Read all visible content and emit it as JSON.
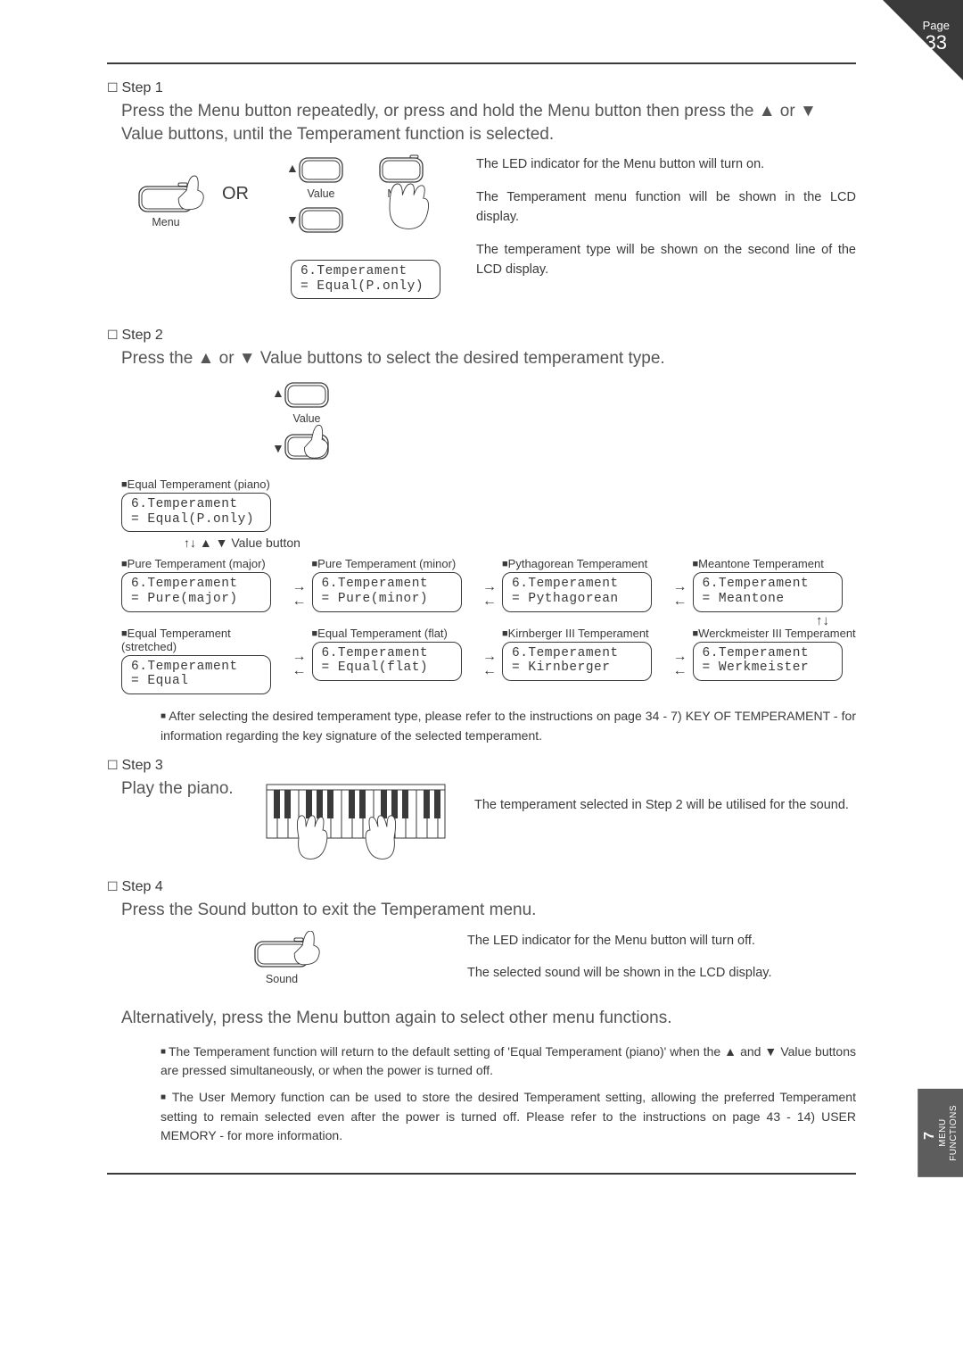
{
  "page": {
    "label": "Page",
    "number": "33"
  },
  "sidebar_tab": {
    "chapter": "7",
    "line1": "MENU",
    "line2": "FUNCTIONS"
  },
  "step1": {
    "title": "Step 1",
    "instruction": "Press the Menu button repeatedly, or press and hold the Menu button then press the ▲ or ▼ Value buttons, until the Temperament function is selected.",
    "or_label": "OR",
    "btn_menu": "Menu",
    "btn_value": "Value",
    "lcd_line1": "6.Temperament",
    "lcd_line2": "= Equal(P.only)",
    "side_p1": "The LED indicator for the Menu button will turn on.",
    "side_p2": "The Temperament menu function will be shown in the LCD display.",
    "side_p3": "The temperament type will be shown on the second line of the LCD display."
  },
  "step2": {
    "title": "Step 2",
    "instruction": "Press the ▲ or ▼ Value buttons to select the desired temperament type.",
    "btn_value": "Value",
    "starter_label": "Equal Temperament (piano)",
    "starter_lcd_l1": "6.Temperament",
    "starter_lcd_l2": "= Equal(P.only)",
    "value_button_note": "↑↓ ▲ ▼ Value button",
    "loop_arrow": "↑↓",
    "cells": [
      {
        "label": "Pure Temperament (major)",
        "l1": "6.Temperament",
        "l2": "= Pure(major)"
      },
      {
        "label": "Pure Temperament (minor)",
        "l1": "6.Temperament",
        "l2": "= Pure(minor)"
      },
      {
        "label": "Pythagorean Temperament",
        "l1": "6.Temperament",
        "l2": "= Pythagorean"
      },
      {
        "label": "Meantone Temperament",
        "l1": "6.Temperament",
        "l2": "= Meantone"
      },
      {
        "label": "Equal Temperament (stretched)",
        "l1": "6.Temperament",
        "l2": "= Equal"
      },
      {
        "label": "Equal Temperament (flat)",
        "l1": "6.Temperament",
        "l2": "= Equal(flat)"
      },
      {
        "label": "Kirnberger III Temperament",
        "l1": "6.Temperament",
        "l2": "= Kirnberger"
      },
      {
        "label": "Werckmeister III Temperament",
        "l1": "6.Temperament",
        "l2": "= Werkmeister"
      }
    ],
    "footnote": "After selecting the desired temperament type, please refer to the instructions on page 34 - 7) KEY OF TEMPERAMENT - for information regarding the key signature of the selected temperament."
  },
  "step3": {
    "title": "Step 3",
    "instruction": "Play the piano.",
    "side_p1": "The temperament selected in Step 2 will be utilised for the sound."
  },
  "step4": {
    "title": "Step 4",
    "instruction": "Press the Sound button to exit the Temperament menu.",
    "btn_sound": "Sound",
    "side_p1": "The LED indicator for the Menu button will turn off.",
    "side_p2": "The selected sound will be shown in the LCD display.",
    "alt_instruction": "Alternatively, press the Menu button again to select other menu functions.",
    "note1": "The Temperament function will return to the default setting of 'Equal Temperament (piano)' when the ▲ and ▼ Value buttons are pressed simultaneously, or when the power is turned off.",
    "note2": "The User Memory function can be used to store the desired Temperament setting, allowing the preferred Temperament setting to remain selected even after the power is turned off.  Please refer to the instructions on page 43 - 14) USER MEMORY - for more information."
  }
}
